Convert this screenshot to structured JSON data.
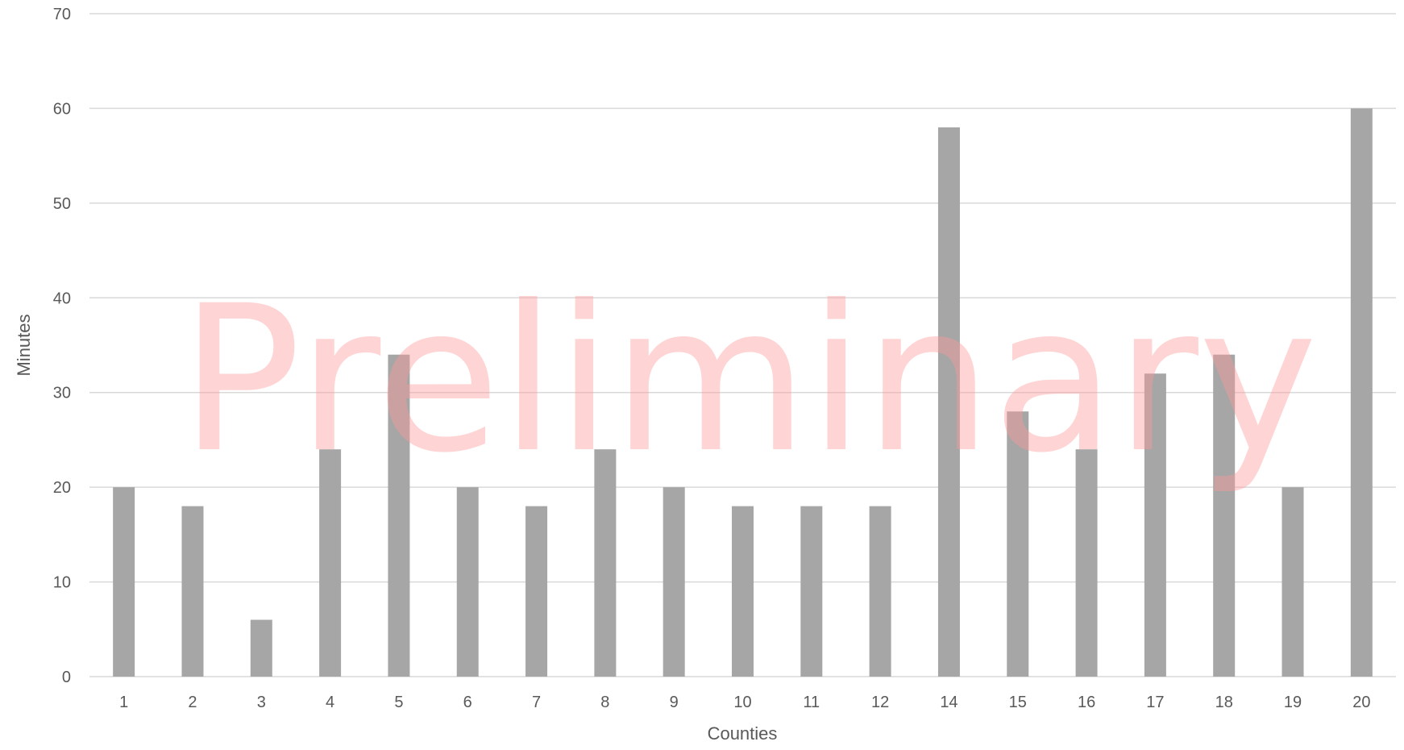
{
  "chart_data": {
    "type": "bar",
    "categories": [
      "1",
      "2",
      "3",
      "4",
      "5",
      "6",
      "7",
      "8",
      "9",
      "10",
      "11",
      "12",
      "14",
      "15",
      "16",
      "17",
      "18",
      "19",
      "20"
    ],
    "values": [
      20,
      18,
      6,
      24,
      34,
      20,
      18,
      24,
      20,
      18,
      18,
      18,
      58,
      28,
      24,
      32,
      34,
      20,
      60
    ],
    "xlabel": "Counties",
    "ylabel": "Minutes",
    "ylim": [
      0,
      70
    ],
    "yticks": [
      0,
      10,
      20,
      30,
      40,
      50,
      60,
      70
    ],
    "grid": true,
    "legend": "none",
    "bar_color": "#a6a6a6",
    "gridline_color": "#d9d9d9"
  },
  "watermark": {
    "text": "Preliminary",
    "color": "#ff9999"
  }
}
